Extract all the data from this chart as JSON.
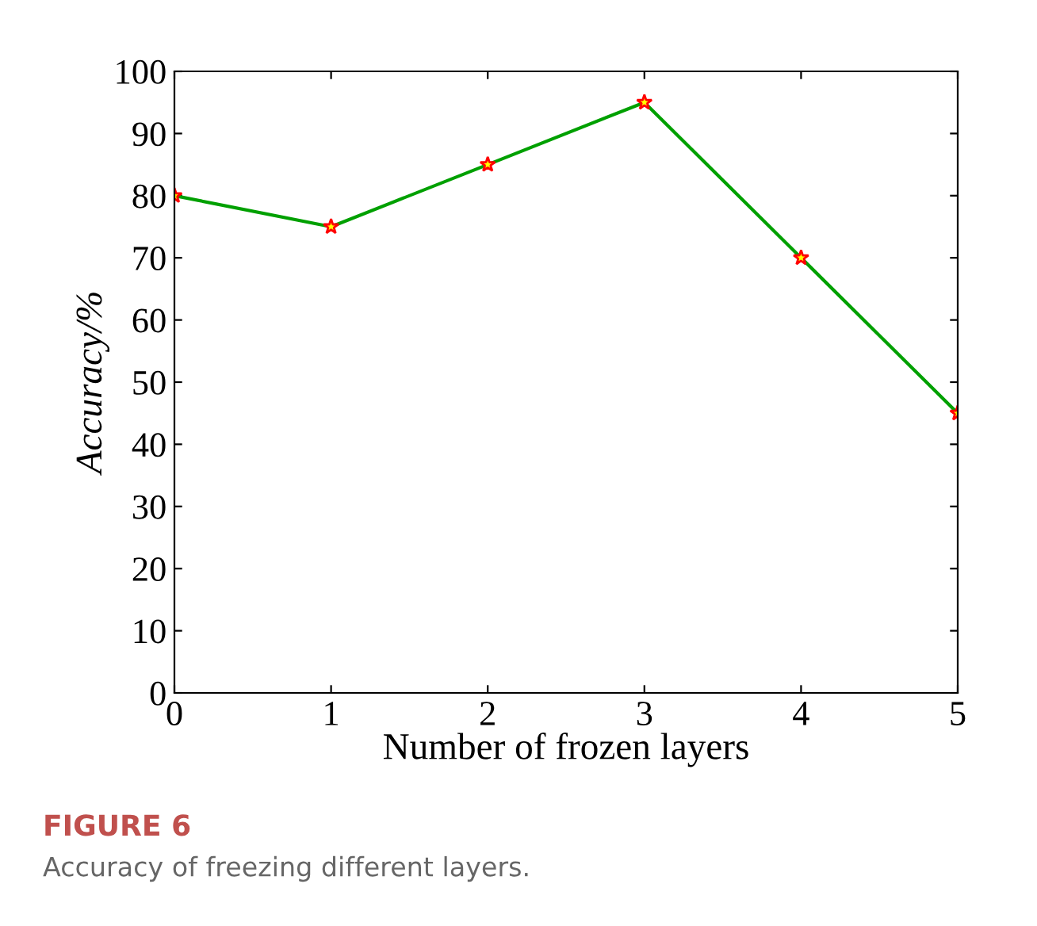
{
  "chart_data": {
    "type": "line",
    "xlabel": "Number of frozen layers",
    "ylabel": "Accuracy/%",
    "x": [
      0,
      1,
      2,
      3,
      4,
      5
    ],
    "series": [
      {
        "color": "#00a000",
        "values": [
          80,
          75,
          85,
          95,
          70,
          45
        ]
      }
    ],
    "xlim": [
      0,
      5
    ],
    "xticks": [
      0,
      1,
      2,
      3,
      4,
      5
    ],
    "ylim": [
      0,
      100
    ],
    "yticks": [
      0,
      10,
      20,
      30,
      40,
      50,
      60,
      70,
      80,
      90,
      100
    ],
    "marker": "star",
    "line_style": "solid",
    "grid": false,
    "legend": false,
    "annotations": [
      "FIGURE 6",
      "Accuracy of freezing different layers."
    ]
  }
}
